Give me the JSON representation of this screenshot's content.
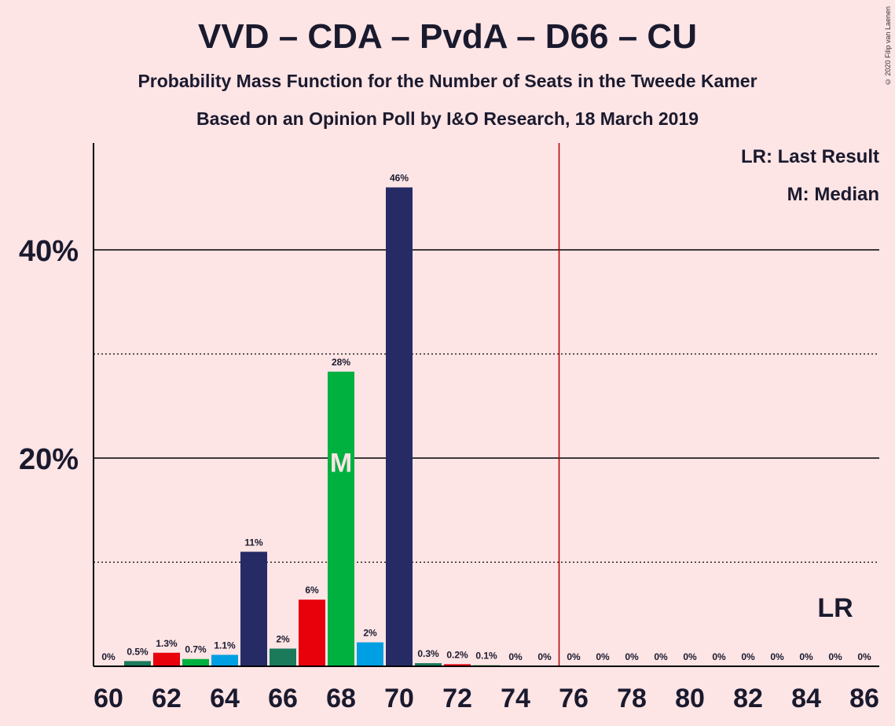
{
  "title": "VVD – CDA – PvdA – D66 – CU",
  "subtitle": "Probability Mass Function for the Number of Seats in the Tweede Kamer",
  "subtitle2": "Based on an Opinion Poll by I&O Research, 18 March 2019",
  "copyright": "© 2020 Filip van Laenen",
  "legend": {
    "last_result": "LR: Last Result",
    "median": "M: Median"
  },
  "chart_data": {
    "type": "bar",
    "x": [
      60,
      61,
      62,
      63,
      64,
      65,
      66,
      67,
      68,
      69,
      70,
      71,
      72,
      73,
      74,
      75,
      76,
      77,
      78,
      79,
      80,
      81,
      82,
      83,
      84,
      85,
      86
    ],
    "values": [
      0,
      0.5,
      1.3,
      0.7,
      1.1,
      11,
      1.7,
      6.4,
      28.3,
      2.3,
      46,
      0.3,
      0.2,
      0.1,
      0,
      0,
      0,
      0,
      0,
      0,
      0,
      0,
      0,
      0,
      0,
      0,
      0
    ],
    "labels": [
      "0%",
      "0.5%",
      "1.3%",
      "0.7%",
      "1.1%",
      "11%",
      "2%",
      "6%",
      "28%",
      "2%",
      "46%",
      "0.3%",
      "0.2%",
      "0.1%",
      "0%",
      "0%",
      "0%",
      "0%",
      "0%",
      "0%",
      "0%",
      "0%",
      "0%",
      "0%",
      "0%",
      "0%",
      "0%"
    ],
    "bar_colors": [
      "#1b7a5a",
      "#1b7a5a",
      "#e8000b",
      "#00b140",
      "#009fe3",
      "#262b65",
      "#1b7a5a",
      "#e8000b",
      "#00b140",
      "#009fe3",
      "#262b65",
      "#1b7a5a",
      "#e8000b",
      "#00b140",
      "#009fe3",
      "#262b65",
      "#1b7a5a",
      "#e8000b",
      "#00b140",
      "#009fe3",
      "#262b65",
      "#1b7a5a",
      "#e8000b",
      "#00b140",
      "#009fe3",
      "#262b65",
      "#1b7a5a"
    ],
    "x_tick_labels": [
      "60",
      "62",
      "64",
      "66",
      "68",
      "70",
      "72",
      "74",
      "76",
      "78",
      "80",
      "82",
      "84",
      "86"
    ],
    "y_tick_labels": [
      "20%",
      "40%"
    ],
    "y_ticks": [
      20,
      40
    ],
    "y_minor_ticks": [
      10,
      30
    ],
    "ylim": [
      0,
      50
    ],
    "majority_line": 75.5,
    "majority_color": "#b00000",
    "median": 68,
    "median_label": "M",
    "last_result": 85,
    "last_result_label": "LR"
  }
}
